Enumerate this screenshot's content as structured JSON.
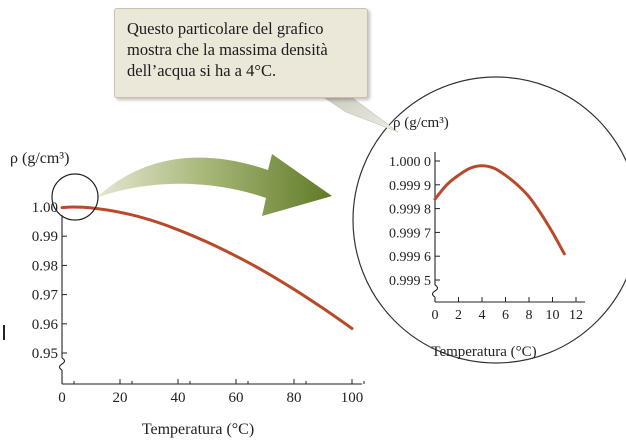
{
  "callout": {
    "lines": [
      "Questo particolare del grafico",
      "mostra che la massima densità",
      "dell’acqua si ha a 4°C."
    ]
  },
  "colors": {
    "curve": "#b84a2a",
    "arrow": "#6f8a35",
    "axis": "#222222",
    "callout_bg": "#ebe7d9"
  },
  "chart_data": [
    {
      "type": "line",
      "title": "",
      "ylabel": "ρ (g/cm³)",
      "xlabel": "Temperatura (°C)",
      "xlim": [
        0,
        100
      ],
      "ylim": [
        0.94,
        1.01
      ],
      "x_ticks": [
        0,
        20,
        40,
        60,
        80,
        100
      ],
      "x_tick_labels": [
        "0",
        "20",
        "40",
        "60",
        "80",
        "100"
      ],
      "y_ticks": [
        0.95,
        0.96,
        0.97,
        0.98,
        0.99,
        1.0
      ],
      "y_tick_labels": [
        "0.95",
        "0.96",
        "0.97",
        "0.98",
        "0.99",
        "1.00"
      ],
      "axis_break": "y",
      "grid": false,
      "series": [
        {
          "x": [
            0,
            4,
            10,
            20,
            30,
            40,
            50,
            60,
            70,
            80,
            90,
            100
          ],
          "y": [
            0.9998,
            1.0,
            0.9997,
            0.9982,
            0.9957,
            0.9922,
            0.988,
            0.9832,
            0.9778,
            0.9718,
            0.9653,
            0.9584
          ]
        }
      ],
      "annotation": "circle around 0–10 °C region"
    },
    {
      "type": "line",
      "title": "",
      "ylabel": "ρ (g/cm³)",
      "xlabel": "Temperatura (°C)",
      "xlim": [
        0,
        12
      ],
      "ylim": [
        0.99945,
        1.00005
      ],
      "x_ticks": [
        0,
        2,
        4,
        6,
        8,
        10,
        12
      ],
      "x_tick_labels": [
        "0",
        "2",
        "4",
        "6",
        "8",
        "10",
        "12"
      ],
      "y_ticks": [
        0.9995,
        0.9996,
        0.9997,
        0.9998,
        0.9999,
        1.0
      ],
      "y_tick_labels": [
        "0.999 5",
        "0.999 6",
        "0.999 7",
        "0.999 8",
        "0.999 9",
        "1.000 0"
      ],
      "axis_break": "y",
      "grid": false,
      "series": [
        {
          "x": [
            0,
            1,
            2,
            3,
            4,
            5,
            6,
            7,
            8,
            9,
            10,
            11
          ],
          "y": [
            0.99984,
            0.9999,
            0.99994,
            0.99997,
            0.99998,
            0.99997,
            0.99994,
            0.9999,
            0.99985,
            0.99978,
            0.9997,
            0.99961
          ]
        }
      ]
    }
  ]
}
